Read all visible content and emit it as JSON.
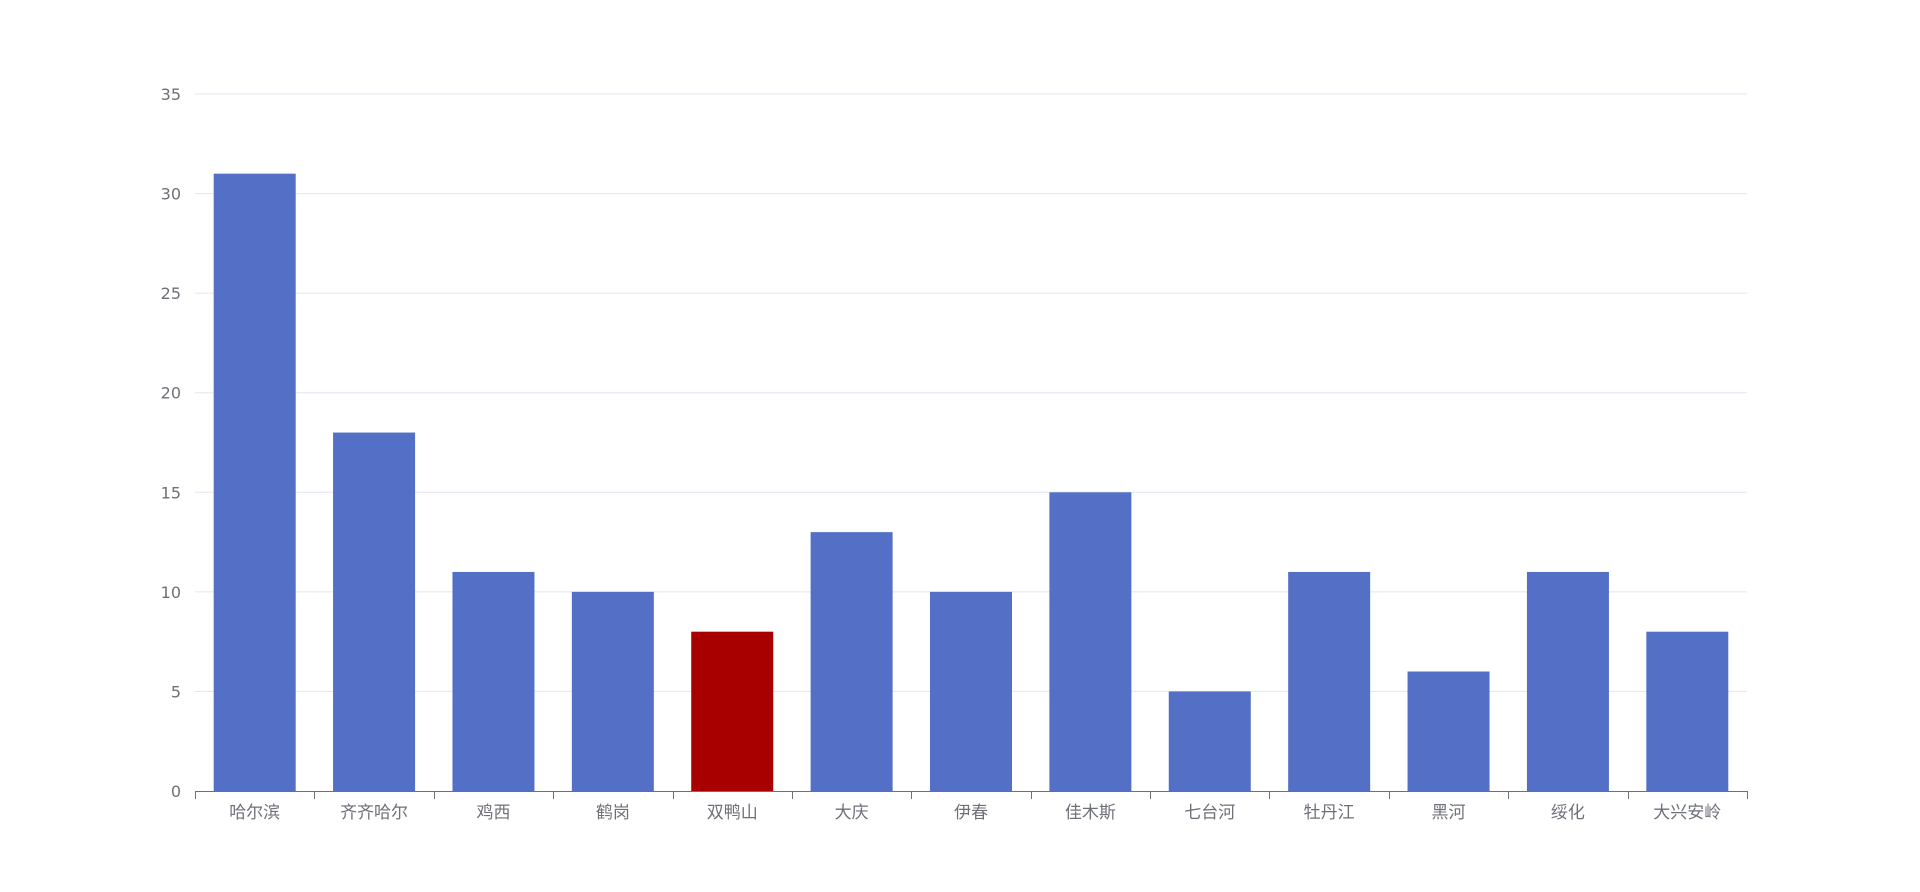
{
  "chart_data": {
    "type": "bar",
    "categories": [
      "哈尔滨",
      "齐齐哈尔",
      "鸡西",
      "鹤岗",
      "双鸭山",
      "大庆",
      "伊春",
      "佳木斯",
      "七台河",
      "牡丹江",
      "黑河",
      "绥化",
      "大兴安岭"
    ],
    "values": [
      31,
      18,
      11,
      10,
      8,
      13,
      10,
      15,
      5,
      11,
      6,
      11,
      8
    ],
    "highlight_index": 4,
    "title": "",
    "xlabel": "",
    "ylabel": "",
    "ylim": [
      0,
      35
    ],
    "yticks": [
      0,
      5,
      10,
      15,
      20,
      25,
      30,
      35
    ],
    "grid": true,
    "colors": {
      "bar": "#5470c6",
      "highlight": "#a80000"
    }
  }
}
